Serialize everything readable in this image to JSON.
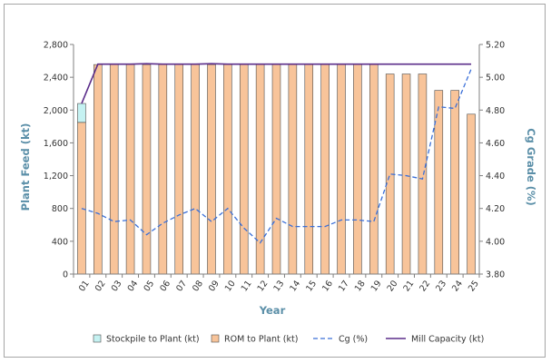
{
  "chart_data": {
    "type": "bar",
    "title": "",
    "xlabel": "Year",
    "ylabel_left": "Plant Feed (kt)",
    "ylabel_right": "Cg Grade (%)",
    "ylim_left": [
      0,
      2800
    ],
    "yticks_left": [
      0,
      400,
      800,
      1200,
      1600,
      2000,
      2400,
      2800
    ],
    "yticks_left_labels": [
      "0",
      "400",
      "800",
      "1,200",
      "1,600",
      "2,000",
      "2,400",
      "2,800"
    ],
    "ylim_right": [
      3.8,
      5.2
    ],
    "yticks_right": [
      3.8,
      4.0,
      4.2,
      4.4,
      4.6,
      4.8,
      5.0,
      5.2
    ],
    "yticks_right_labels": [
      "3.80",
      "4.00",
      "4.20",
      "4.40",
      "4.60",
      "4.80",
      "5.00",
      "5.20"
    ],
    "categories": [
      "01",
      "02",
      "03",
      "04",
      "05",
      "06",
      "07",
      "08",
      "09",
      "10",
      "11",
      "12",
      "13",
      "14",
      "15",
      "16",
      "17",
      "18",
      "19",
      "20",
      "21",
      "22",
      "23",
      "24",
      "25"
    ],
    "grid": false,
    "legend_position": "bottom",
    "series": [
      {
        "name": "Stockpile to Plant (kt)",
        "kind": "bar-stacked",
        "axis": "left",
        "color": "#c5f2f2",
        "values": [
          230,
          0,
          0,
          0,
          0,
          0,
          0,
          0,
          0,
          0,
          0,
          0,
          0,
          0,
          0,
          0,
          0,
          0,
          0,
          0,
          0,
          0,
          0,
          0,
          0
        ]
      },
      {
        "name": "ROM to Plant (kt)",
        "kind": "bar-stacked",
        "axis": "left",
        "color": "#f8c49a",
        "values": [
          1850,
          2555,
          2555,
          2555,
          2555,
          2555,
          2555,
          2555,
          2555,
          2555,
          2555,
          2555,
          2555,
          2555,
          2555,
          2555,
          2555,
          2555,
          2555,
          2440,
          2440,
          2440,
          2240,
          2240,
          1950
        ]
      },
      {
        "name": "Cg (%)",
        "kind": "line-dashed",
        "axis": "right",
        "color": "#3a6fd8",
        "values": [
          4.2,
          4.17,
          4.12,
          4.13,
          4.04,
          4.11,
          4.16,
          4.2,
          4.12,
          4.2,
          4.08,
          3.99,
          4.14,
          4.09,
          4.09,
          4.09,
          4.13,
          4.13,
          4.12,
          4.41,
          4.4,
          4.38,
          4.82,
          4.81,
          5.05
        ]
      },
      {
        "name": "Mill Capacity (kt)",
        "kind": "line",
        "axis": "left",
        "color": "#5b2d8a",
        "values": [
          2080,
          2560,
          2560,
          2560,
          2565,
          2560,
          2560,
          2560,
          2565,
          2560,
          2560,
          2560,
          2560,
          2560,
          2560,
          2560,
          2560,
          2560,
          2560,
          2560,
          2560,
          2560,
          2560,
          2560,
          2560
        ]
      }
    ]
  }
}
